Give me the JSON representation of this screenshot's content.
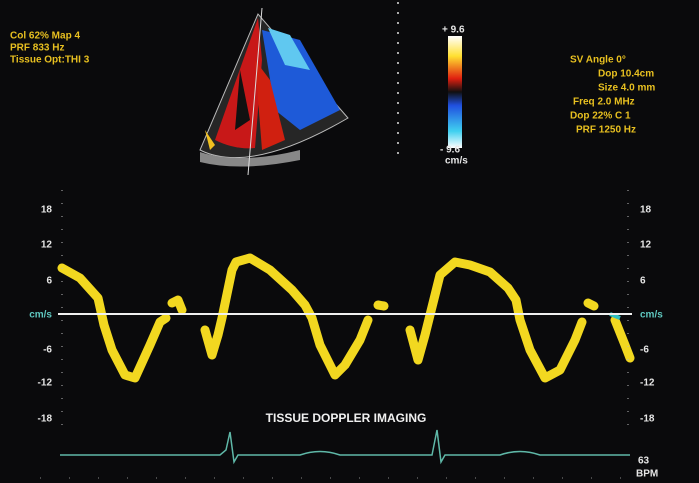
{
  "top_left": [
    "Col 62%  Map 4",
    "PRF 833    Hz",
    "Tissue Opt:THI 3"
  ],
  "color_scale": {
    "top": "+ 9.6",
    "bottom": "- 9.6",
    "unit": "cm/s"
  },
  "top_right": [
    "SV Angle 0°",
    "Dop 10.4cm",
    "Size 4.0  mm",
    "Freq 2.0  MHz",
    "Dop 22%  C 1",
    "PRF 1250  Hz"
  ],
  "scale_left": [
    "18",
    "12",
    "6",
    "cm/s",
    "-6",
    "-12",
    "-18"
  ],
  "scale_right": [
    "18",
    "12",
    "6",
    "cm/s",
    "-6",
    "-12",
    "-18"
  ],
  "caption": "TISSUE DOPPLER IMAGING",
  "heart_rate": {
    "value": "63",
    "unit": "BPM"
  }
}
